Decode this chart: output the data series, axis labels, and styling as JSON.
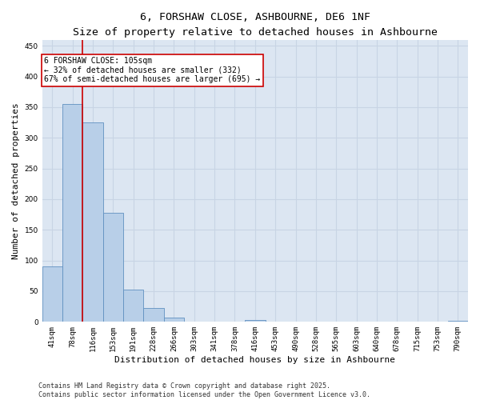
{
  "title_line1": "6, FORSHAW CLOSE, ASHBOURNE, DE6 1NF",
  "title_line2": "Size of property relative to detached houses in Ashbourne",
  "xlabel": "Distribution of detached houses by size in Ashbourne",
  "ylabel": "Number of detached properties",
  "categories": [
    "41sqm",
    "78sqm",
    "116sqm",
    "153sqm",
    "191sqm",
    "228sqm",
    "266sqm",
    "303sqm",
    "341sqm",
    "378sqm",
    "416sqm",
    "453sqm",
    "490sqm",
    "528sqm",
    "565sqm",
    "603sqm",
    "640sqm",
    "678sqm",
    "715sqm",
    "753sqm",
    "790sqm"
  ],
  "values": [
    90,
    355,
    325,
    178,
    52,
    23,
    7,
    0,
    0,
    0,
    3,
    0,
    0,
    0,
    0,
    0,
    0,
    0,
    0,
    0,
    2
  ],
  "bar_color": "#b8cfe8",
  "bar_edge_color": "#6090c0",
  "grid_color": "#c8d4e4",
  "background_color": "#dce6f2",
  "annotation_text_line1": "6 FORSHAW CLOSE: 105sqm",
  "annotation_text_line2": "← 32% of detached houses are smaller (332)",
  "annotation_text_line3": "67% of semi-detached houses are larger (695) →",
  "vline_x": 1.5,
  "vline_color": "#cc0000",
  "ylim": [
    0,
    460
  ],
  "yticks": [
    0,
    50,
    100,
    150,
    200,
    250,
    300,
    350,
    400,
    450
  ],
  "footer_line1": "Contains HM Land Registry data © Crown copyright and database right 2025.",
  "footer_line2": "Contains public sector information licensed under the Open Government Licence v3.0.",
  "title_fontsize": 9.5,
  "subtitle_fontsize": 8.5,
  "tick_fontsize": 6.5,
  "ylabel_fontsize": 8,
  "xlabel_fontsize": 8,
  "annotation_fontsize": 7,
  "footer_fontsize": 6
}
